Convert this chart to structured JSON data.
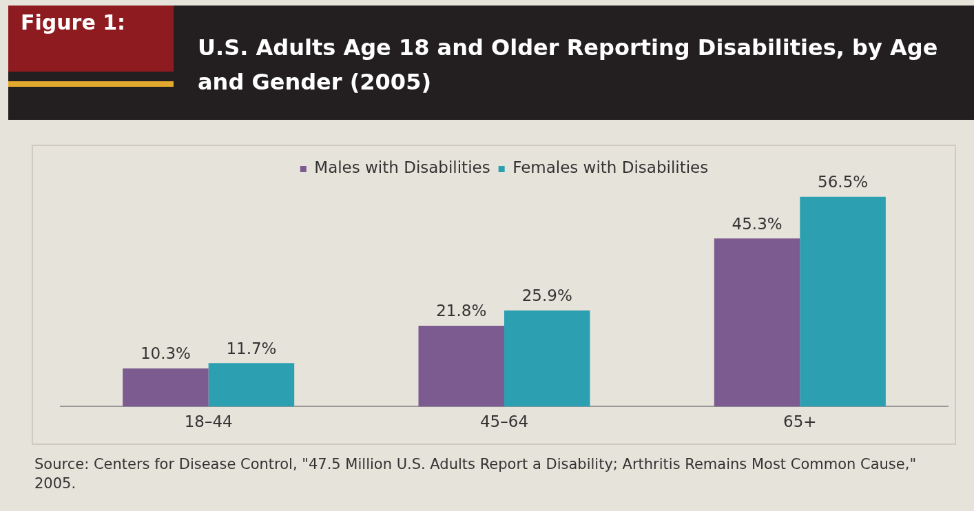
{
  "chart_data": {
    "type": "bar",
    "title": "U.S. Adults Age 18 and Older Reporting Disabilities, by Age and Gender (2005)",
    "annotations": [
      "Figure 1:",
      "Source: Centers for Disease Control, \"47.5 Million U.S. Adults Report a Disability; Arthritis Remains Most Common Cause,\" 2005."
    ],
    "categories": [
      "18–44",
      "45–64",
      "65+"
    ],
    "series": [
      {
        "name": "Males with Disabilities",
        "color": "#7b5b90",
        "values": [
          10.3,
          21.8,
          45.3
        ],
        "value_labels": [
          "10.3%",
          "21.8%",
          "45.3%"
        ]
      },
      {
        "name": "Females with Disabilities",
        "color": "#2c9fb1",
        "values": [
          11.7,
          25.9,
          56.5
        ],
        "value_labels": [
          "11.7%",
          "25.9%",
          "56.5%"
        ]
      }
    ],
    "legend": "top",
    "grid": false
  }
}
